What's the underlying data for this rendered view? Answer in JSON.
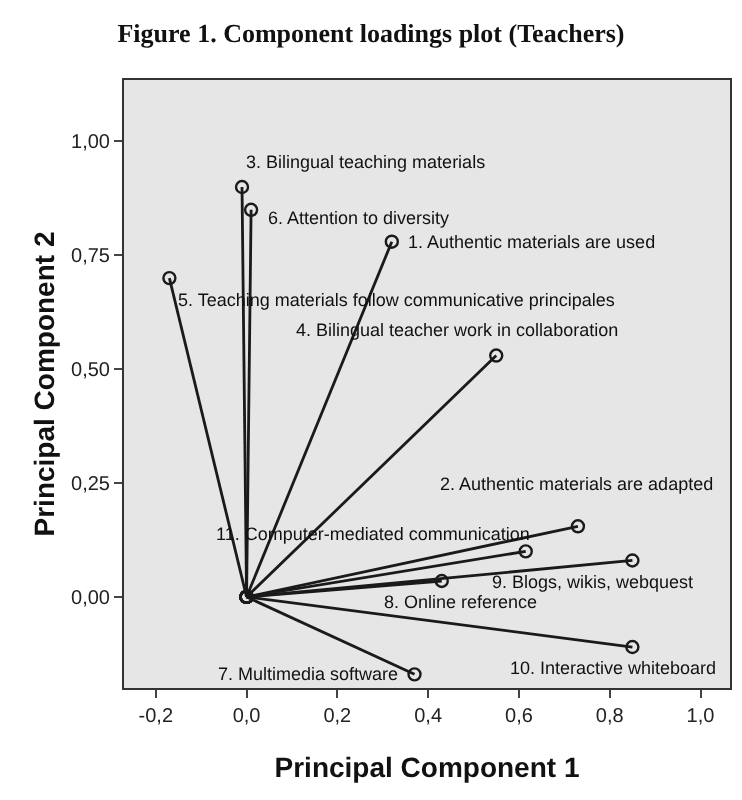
{
  "chart_data": {
    "type": "line",
    "title": "Figure 1. Component loadings plot (Teachers)",
    "xlabel": "Principal Component 1",
    "ylabel": "Principal Component 2",
    "xlim": [
      -0.27,
      1.065
    ],
    "ylim": [
      -0.2,
      1.135
    ],
    "xticks": [
      {
        "value": -0.2,
        "label": "-0,2"
      },
      {
        "value": 0,
        "label": "0,0"
      },
      {
        "value": 0.2,
        "label": "0,2"
      },
      {
        "value": 0.4,
        "label": "0,4"
      },
      {
        "value": 0.6,
        "label": "0,6"
      },
      {
        "value": 0.8,
        "label": "0,8"
      },
      {
        "value": 1.0,
        "label": "1,0"
      }
    ],
    "yticks": [
      {
        "value": 0,
        "label": "0,00"
      },
      {
        "value": 0.25,
        "label": "0,25"
      },
      {
        "value": 0.5,
        "label": "0,50"
      },
      {
        "value": 0.75,
        "label": "0,75"
      },
      {
        "value": 1.0,
        "label": "1,00"
      }
    ],
    "grid": false,
    "legend": false,
    "marker": "circle",
    "line_style": "solid",
    "series": [
      {
        "name": "1. Authentic materials are used",
        "color": "#1a1a1a",
        "x": [
          0,
          0.32
        ],
        "values": [
          0,
          0.78
        ]
      },
      {
        "name": "2. Authentic materials are adapted",
        "color": "#1a1a1a",
        "x": [
          0,
          0.73
        ],
        "values": [
          0,
          0.155
        ]
      },
      {
        "name": "3. Bilingual teaching materials",
        "color": "#1a1a1a",
        "x": [
          0,
          -0.01
        ],
        "values": [
          0,
          0.9
        ]
      },
      {
        "name": "4. Bilingual teacher work in collaboration",
        "color": "#1a1a1a",
        "x": [
          0,
          0.55
        ],
        "values": [
          0,
          0.53
        ]
      },
      {
        "name": "5. Teaching materials follow communicative principales",
        "color": "#1a1a1a",
        "x": [
          0,
          -0.17
        ],
        "values": [
          0,
          0.7
        ]
      },
      {
        "name": "6. Attention to diversity",
        "color": "#1a1a1a",
        "x": [
          0,
          0.01
        ],
        "values": [
          0,
          0.85
        ]
      },
      {
        "name": "7. Multimedia software",
        "color": "#1a1a1a",
        "x": [
          0,
          0.37
        ],
        "values": [
          0,
          -0.17
        ]
      },
      {
        "name": "8. Online reference",
        "color": "#1a1a1a",
        "x": [
          0,
          0.43
        ],
        "values": [
          0,
          0.035
        ]
      },
      {
        "name": "9. Blogs, wikis, webquest",
        "color": "#1a1a1a",
        "x": [
          0,
          0.85
        ],
        "values": [
          0,
          0.08
        ]
      },
      {
        "name": "10. Interactive whiteboard",
        "color": "#1a1a1a",
        "x": [
          0,
          0.85
        ],
        "values": [
          0,
          -0.11
        ]
      },
      {
        "name": "11. Computer-mediated communication",
        "color": "#1a1a1a",
        "x": [
          0,
          0.615
        ],
        "values": [
          0,
          0.1
        ]
      }
    ]
  }
}
